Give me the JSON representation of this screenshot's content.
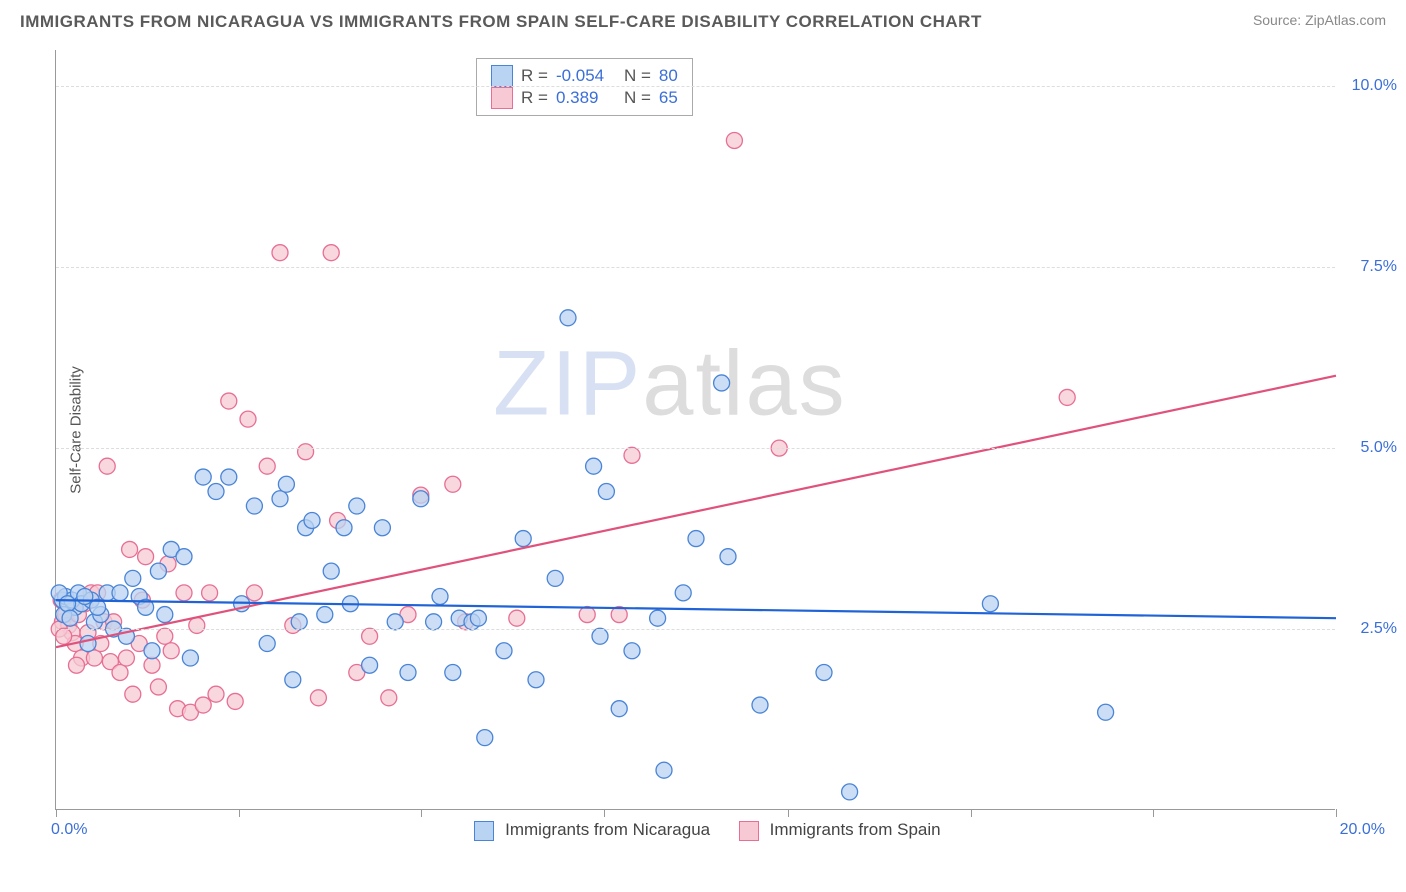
{
  "title": "IMMIGRANTS FROM NICARAGUA VS IMMIGRANTS FROM SPAIN SELF-CARE DISABILITY CORRELATION CHART",
  "source_label": "Source: ZipAtlas.com",
  "y_axis_label": "Self-Care Disability",
  "watermark": {
    "part1": "ZIP",
    "part2": "atlas"
  },
  "colors": {
    "series_a_fill": "#b9d3f2",
    "series_a_stroke": "#4a84d6",
    "series_b_fill": "#f6c9d4",
    "series_b_stroke": "#e76f94",
    "line_a": "#1f63d6",
    "line_b": "#e0527c",
    "grid": "#dddddd",
    "axis": "#999999",
    "tick_text": "#3b6fd8",
    "background": "#ffffff"
  },
  "chart": {
    "type": "scatter-with-regression",
    "xlim": [
      0,
      20
    ],
    "ylim": [
      0,
      10.5
    ],
    "y_ticks": [
      2.5,
      5.0,
      7.5,
      10.0
    ],
    "y_tick_labels": [
      "2.5%",
      "5.0%",
      "7.5%",
      "10.0%"
    ],
    "x_ticks": [
      0,
      2.86,
      5.71,
      8.57,
      11.43,
      14.29,
      17.14,
      20
    ],
    "x_origin_label": "0.0%",
    "x_max_label": "20.0%",
    "marker_radius": 8,
    "marker_opacity": 0.75,
    "line_width": 2.2
  },
  "stats_box": {
    "rows": [
      {
        "swatch": "a",
        "r_label": "R =",
        "r_value": "-0.054",
        "n_label": "N =",
        "n_value": "80"
      },
      {
        "swatch": "b",
        "r_label": "R =",
        "r_value": "0.389",
        "n_label": "N =",
        "n_value": "65"
      }
    ]
  },
  "bottom_legend": {
    "items": [
      {
        "swatch": "a",
        "label": "Immigrants from Nicaragua"
      },
      {
        "swatch": "b",
        "label": "Immigrants from Spain"
      }
    ]
  },
  "series_a": {
    "name": "Immigrants from Nicaragua",
    "regression": {
      "y_at_x0": 2.9,
      "y_at_x20": 2.65
    },
    "points": [
      [
        0.1,
        2.9
      ],
      [
        0.2,
        2.85
      ],
      [
        0.3,
        2.8
      ],
      [
        0.15,
        2.95
      ],
      [
        0.25,
        2.9
      ],
      [
        0.35,
        3.0
      ],
      [
        0.4,
        2.85
      ],
      [
        0.5,
        2.3
      ],
      [
        0.55,
        2.9
      ],
      [
        0.6,
        2.6
      ],
      [
        0.7,
        2.7
      ],
      [
        0.8,
        3.0
      ],
      [
        0.9,
        2.5
      ],
      [
        1.0,
        3.0
      ],
      [
        1.1,
        2.4
      ],
      [
        1.2,
        3.2
      ],
      [
        1.3,
        2.95
      ],
      [
        1.4,
        2.8
      ],
      [
        1.5,
        2.2
      ],
      [
        1.6,
        3.3
      ],
      [
        1.8,
        3.6
      ],
      [
        2.0,
        3.5
      ],
      [
        2.1,
        2.1
      ],
      [
        2.3,
        4.6
      ],
      [
        2.5,
        4.4
      ],
      [
        2.7,
        4.6
      ],
      [
        2.9,
        2.85
      ],
      [
        3.1,
        4.2
      ],
      [
        3.3,
        2.3
      ],
      [
        3.5,
        4.3
      ],
      [
        3.6,
        4.5
      ],
      [
        3.7,
        1.8
      ],
      [
        3.8,
        2.6
      ],
      [
        3.9,
        3.9
      ],
      [
        4.0,
        4.0
      ],
      [
        4.2,
        2.7
      ],
      [
        4.3,
        3.3
      ],
      [
        4.5,
        3.9
      ],
      [
        4.6,
        2.85
      ],
      [
        4.7,
        4.2
      ],
      [
        4.9,
        2.0
      ],
      [
        5.1,
        3.9
      ],
      [
        5.3,
        2.6
      ],
      [
        5.5,
        1.9
      ],
      [
        5.7,
        4.3
      ],
      [
        5.9,
        2.6
      ],
      [
        6.0,
        2.95
      ],
      [
        6.2,
        1.9
      ],
      [
        6.3,
        2.65
      ],
      [
        6.5,
        2.6
      ],
      [
        6.6,
        2.65
      ],
      [
        6.7,
        1.0
      ],
      [
        7.0,
        2.2
      ],
      [
        7.3,
        3.75
      ],
      [
        7.5,
        1.8
      ],
      [
        7.8,
        3.2
      ],
      [
        8.0,
        6.8
      ],
      [
        8.4,
        4.75
      ],
      [
        8.5,
        2.4
      ],
      [
        8.6,
        4.4
      ],
      [
        8.8,
        1.4
      ],
      [
        9.0,
        2.2
      ],
      [
        9.4,
        2.65
      ],
      [
        9.5,
        0.55
      ],
      [
        9.8,
        3.0
      ],
      [
        10.0,
        3.75
      ],
      [
        10.4,
        5.9
      ],
      [
        10.5,
        3.5
      ],
      [
        11.0,
        1.45
      ],
      [
        12.0,
        1.9
      ],
      [
        12.4,
        0.25
      ],
      [
        14.6,
        2.85
      ],
      [
        16.4,
        1.35
      ],
      [
        0.05,
        3.0
      ],
      [
        0.12,
        2.7
      ],
      [
        0.18,
        2.85
      ],
      [
        0.22,
        2.65
      ],
      [
        0.45,
        2.95
      ],
      [
        0.65,
        2.8
      ],
      [
        1.7,
        2.7
      ]
    ]
  },
  "series_b": {
    "name": "Immigrants from Spain",
    "regression": {
      "y_at_x0": 2.25,
      "y_at_x20": 6.0
    },
    "points": [
      [
        0.1,
        2.6
      ],
      [
        0.15,
        2.7
      ],
      [
        0.2,
        2.55
      ],
      [
        0.25,
        2.45
      ],
      [
        0.3,
        2.3
      ],
      [
        0.35,
        2.7
      ],
      [
        0.4,
        2.1
      ],
      [
        0.45,
        2.85
      ],
      [
        0.5,
        2.45
      ],
      [
        0.55,
        3.0
      ],
      [
        0.6,
        2.1
      ],
      [
        0.65,
        3.0
      ],
      [
        0.7,
        2.3
      ],
      [
        0.75,
        2.6
      ],
      [
        0.8,
        4.75
      ],
      [
        0.85,
        2.05
      ],
      [
        0.9,
        2.6
      ],
      [
        1.0,
        1.9
      ],
      [
        1.1,
        2.1
      ],
      [
        1.15,
        3.6
      ],
      [
        1.2,
        1.6
      ],
      [
        1.3,
        2.3
      ],
      [
        1.35,
        2.9
      ],
      [
        1.4,
        3.5
      ],
      [
        1.5,
        2.0
      ],
      [
        1.6,
        1.7
      ],
      [
        1.7,
        2.4
      ],
      [
        1.8,
        2.2
      ],
      [
        1.9,
        1.4
      ],
      [
        2.0,
        3.0
      ],
      [
        2.1,
        1.35
      ],
      [
        2.2,
        2.55
      ],
      [
        2.3,
        1.45
      ],
      [
        2.4,
        3.0
      ],
      [
        2.5,
        1.6
      ],
      [
        2.7,
        5.65
      ],
      [
        2.8,
        1.5
      ],
      [
        3.0,
        5.4
      ],
      [
        3.1,
        3.0
      ],
      [
        3.3,
        4.75
      ],
      [
        3.5,
        7.7
      ],
      [
        3.7,
        2.55
      ],
      [
        3.9,
        4.95
      ],
      [
        4.1,
        1.55
      ],
      [
        4.3,
        7.7
      ],
      [
        4.4,
        4.0
      ],
      [
        4.7,
        1.9
      ],
      [
        4.9,
        2.4
      ],
      [
        5.2,
        1.55
      ],
      [
        5.5,
        2.7
      ],
      [
        5.7,
        4.35
      ],
      [
        6.2,
        4.5
      ],
      [
        6.4,
        2.6
      ],
      [
        7.2,
        2.65
      ],
      [
        8.3,
        2.7
      ],
      [
        8.8,
        2.7
      ],
      [
        9.0,
        4.9
      ],
      [
        10.6,
        9.25
      ],
      [
        11.3,
        5.0
      ],
      [
        15.8,
        5.7
      ],
      [
        0.05,
        2.5
      ],
      [
        0.08,
        2.9
      ],
      [
        0.12,
        2.4
      ],
      [
        0.32,
        2.0
      ],
      [
        1.75,
        3.4
      ]
    ]
  }
}
